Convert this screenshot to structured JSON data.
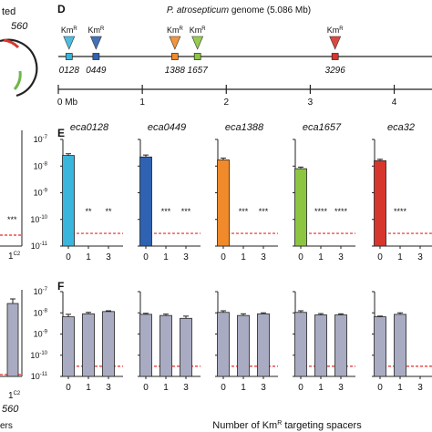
{
  "left_fragment": {
    "top_text": "ted",
    "top_id": "560",
    "sig": "***",
    "x_label": "1",
    "x_label_sup": "C2",
    "bottom_id": "560",
    "bottom_word": "ers",
    "bar_value": 3e-09
  },
  "panel_d": {
    "letter": "D",
    "genome_title": "P. atrosepticum",
    "genome_size": "genome (5.086 Mb)",
    "marker_text": "Km",
    "marker_sup": "R",
    "markers": [
      {
        "id": "0128",
        "pos_mb": 0.128,
        "color": "#3ab6dc",
        "labeled": true
      },
      {
        "id": "0449",
        "pos_mb": 0.449,
        "color": "#2f62b0",
        "labeled": true
      },
      {
        "id": "1388",
        "pos_mb": 1.388,
        "color": "#f08a2a",
        "labeled": true
      },
      {
        "id": "1657",
        "pos_mb": 1.657,
        "color": "#8cc640",
        "labeled": true
      },
      {
        "id": "3296",
        "pos_mb": 3.296,
        "color": "#d7362d",
        "labeled": true
      }
    ],
    "scale_ticks": [
      "0 Mb",
      "1",
      "2",
      "3",
      "4"
    ],
    "scale_tick_values": [
      0,
      1,
      2,
      3,
      4
    ]
  },
  "y_ticks": [
    {
      "exp": "-7",
      "v": 1e-07
    },
    {
      "exp": "-8",
      "v": 1e-08
    },
    {
      "exp": "-9",
      "v": 1e-09
    },
    {
      "exp": "-10",
      "v": 1e-10
    },
    {
      "exp": "-11",
      "v": 1e-11
    }
  ],
  "y_base": "10",
  "x_categories": [
    "0",
    "1",
    "3"
  ],
  "detection_limit": 3e-11,
  "panel_e": {
    "letter": "E",
    "groups": [
      {
        "title": "eca0128",
        "color": "#3ab6dc",
        "values": [
          2.5e-08,
          null,
          null
        ],
        "errors": [
          4e-09,
          0,
          0
        ],
        "sig": [
          "",
          "**",
          "**"
        ]
      },
      {
        "title": "eca0449",
        "color": "#2f62b0",
        "values": [
          2.2e-08,
          null,
          null
        ],
        "errors": [
          4e-09,
          0,
          0
        ],
        "sig": [
          "",
          "***",
          "***"
        ]
      },
      {
        "title": "eca1388",
        "color": "#f08a2a",
        "values": [
          1.7e-08,
          null,
          null
        ],
        "errors": [
          3e-09,
          0,
          0
        ],
        "sig": [
          "",
          "***",
          "***"
        ]
      },
      {
        "title": "eca1657",
        "color": "#8cc640",
        "values": [
          8e-09,
          null,
          null
        ],
        "errors": [
          1.2e-09,
          0,
          0
        ],
        "sig": [
          "",
          "****",
          "****"
        ]
      },
      {
        "title": "eca32",
        "color": "#d7362d",
        "values": [
          1.6e-08,
          null,
          null
        ],
        "errors": [
          2e-09,
          0,
          0
        ],
        "sig": [
          "",
          "****",
          ""
        ]
      }
    ]
  },
  "panel_f": {
    "letter": "F",
    "color": "#a9abc2",
    "groups": [
      {
        "values": [
          6.5e-09,
          9e-09,
          1.15e-08
        ],
        "errors": [
          2e-09,
          1.5e-09,
          1e-09
        ]
      },
      {
        "values": [
          8.5e-09,
          7.5e-09,
          5.5e-09
        ],
        "errors": [
          1e-09,
          1.2e-09,
          1.5e-09
        ]
      },
      {
        "values": [
          1.05e-08,
          7.5e-09,
          9e-09
        ],
        "errors": [
          2e-09,
          1.5e-09,
          1e-09
        ]
      },
      {
        "values": [
          1.05e-08,
          8e-09,
          8e-09
        ],
        "errors": [
          2e-09,
          1.2e-09,
          1e-09
        ]
      },
      {
        "values": [
          6.5e-09,
          8.5e-09,
          null
        ],
        "errors": [
          5e-10,
          1.5e-09,
          0
        ]
      }
    ]
  },
  "x_axis_title": "Number of Km",
  "x_axis_title_sup": "R",
  "x_axis_title_end": " targeting spacers"
}
